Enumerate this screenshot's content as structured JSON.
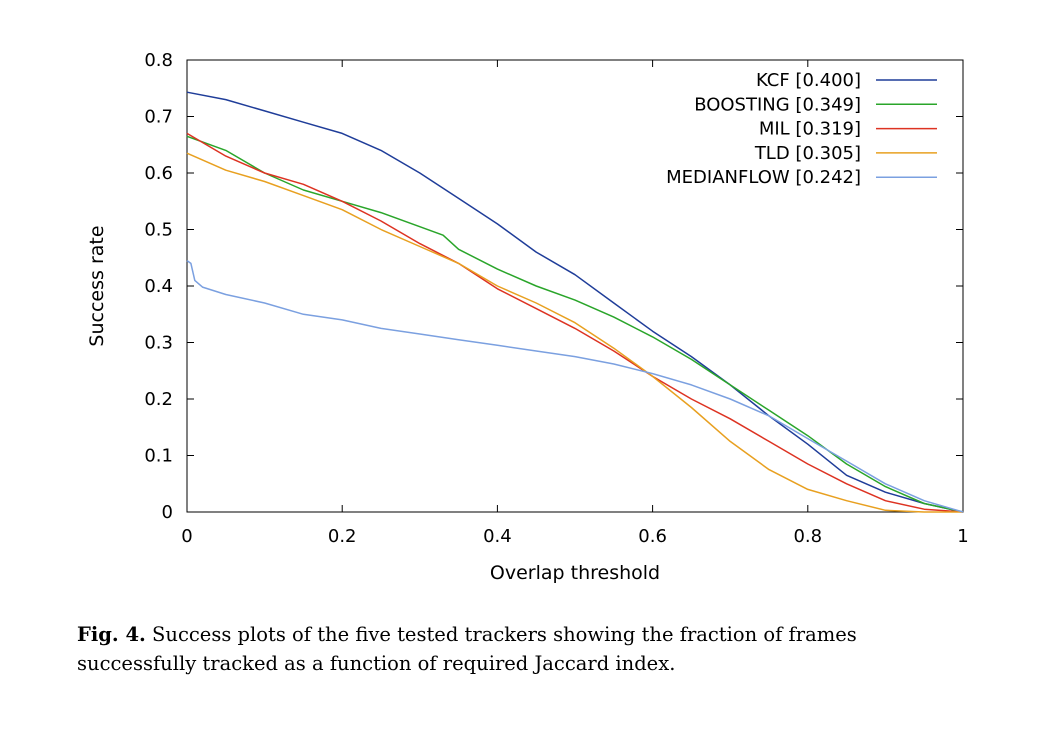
{
  "chart_data": {
    "type": "line",
    "xlabel": "Overlap threshold",
    "ylabel": "Success rate",
    "xlim": [
      0,
      1
    ],
    "ylim": [
      0,
      0.8
    ],
    "xticks": [
      "0",
      "0.2",
      "0.4",
      "0.6",
      "0.8",
      "1"
    ],
    "yticks": [
      "0",
      "0.1",
      "0.2",
      "0.3",
      "0.4",
      "0.5",
      "0.6",
      "0.7",
      "0.8"
    ],
    "grid": false,
    "legend_position": "top-right",
    "series": [
      {
        "name": "KCF [0.400]",
        "color": "#1f3d99",
        "points": [
          [
            0,
            0.743
          ],
          [
            0.05,
            0.73
          ],
          [
            0.1,
            0.71
          ],
          [
            0.15,
            0.69
          ],
          [
            0.2,
            0.67
          ],
          [
            0.25,
            0.64
          ],
          [
            0.3,
            0.6
          ],
          [
            0.35,
            0.555
          ],
          [
            0.4,
            0.51
          ],
          [
            0.45,
            0.46
          ],
          [
            0.5,
            0.42
          ],
          [
            0.55,
            0.37
          ],
          [
            0.6,
            0.32
          ],
          [
            0.65,
            0.275
          ],
          [
            0.7,
            0.225
          ],
          [
            0.75,
            0.17
          ],
          [
            0.8,
            0.12
          ],
          [
            0.85,
            0.065
          ],
          [
            0.9,
            0.035
          ],
          [
            0.95,
            0.015
          ],
          [
            1.0,
            0.0
          ]
        ]
      },
      {
        "name": "BOOSTING [0.349]",
        "color": "#2aa52a",
        "points": [
          [
            0,
            0.665
          ],
          [
            0.05,
            0.64
          ],
          [
            0.1,
            0.6
          ],
          [
            0.15,
            0.57
          ],
          [
            0.2,
            0.55
          ],
          [
            0.25,
            0.53
          ],
          [
            0.3,
            0.505
          ],
          [
            0.33,
            0.49
          ],
          [
            0.35,
            0.465
          ],
          [
            0.4,
            0.43
          ],
          [
            0.45,
            0.4
          ],
          [
            0.5,
            0.375
          ],
          [
            0.55,
            0.345
          ],
          [
            0.6,
            0.31
          ],
          [
            0.65,
            0.27
          ],
          [
            0.7,
            0.225
          ],
          [
            0.75,
            0.18
          ],
          [
            0.8,
            0.135
          ],
          [
            0.85,
            0.085
          ],
          [
            0.9,
            0.045
          ],
          [
            0.95,
            0.015
          ],
          [
            1.0,
            0.0
          ]
        ]
      },
      {
        "name": "MIL [0.319]",
        "color": "#dd3322",
        "points": [
          [
            0,
            0.67
          ],
          [
            0.05,
            0.63
          ],
          [
            0.1,
            0.6
          ],
          [
            0.15,
            0.58
          ],
          [
            0.2,
            0.55
          ],
          [
            0.25,
            0.515
          ],
          [
            0.3,
            0.475
          ],
          [
            0.35,
            0.44
          ],
          [
            0.4,
            0.395
          ],
          [
            0.45,
            0.36
          ],
          [
            0.5,
            0.325
          ],
          [
            0.55,
            0.285
          ],
          [
            0.6,
            0.24
          ],
          [
            0.65,
            0.2
          ],
          [
            0.7,
            0.165
          ],
          [
            0.75,
            0.125
          ],
          [
            0.8,
            0.085
          ],
          [
            0.85,
            0.05
          ],
          [
            0.9,
            0.02
          ],
          [
            0.95,
            0.005
          ],
          [
            1.0,
            0.0
          ]
        ]
      },
      {
        "name": "TLD [0.305]",
        "color": "#e8a020",
        "points": [
          [
            0,
            0.635
          ],
          [
            0.05,
            0.605
          ],
          [
            0.1,
            0.585
          ],
          [
            0.15,
            0.56
          ],
          [
            0.2,
            0.535
          ],
          [
            0.25,
            0.5
          ],
          [
            0.3,
            0.47
          ],
          [
            0.35,
            0.44
          ],
          [
            0.4,
            0.4
          ],
          [
            0.45,
            0.37
          ],
          [
            0.5,
            0.335
          ],
          [
            0.55,
            0.29
          ],
          [
            0.6,
            0.24
          ],
          [
            0.65,
            0.185
          ],
          [
            0.7,
            0.125
          ],
          [
            0.75,
            0.075
          ],
          [
            0.8,
            0.04
          ],
          [
            0.85,
            0.02
          ],
          [
            0.9,
            0.003
          ],
          [
            0.95,
            0.0
          ],
          [
            1.0,
            0.0
          ]
        ]
      },
      {
        "name": "MEDIANFLOW [0.242]",
        "color": "#7ba0e0",
        "points": [
          [
            0,
            0.445
          ],
          [
            0.005,
            0.44
          ],
          [
            0.01,
            0.41
          ],
          [
            0.02,
            0.398
          ],
          [
            0.05,
            0.385
          ],
          [
            0.1,
            0.37
          ],
          [
            0.15,
            0.35
          ],
          [
            0.2,
            0.34
          ],
          [
            0.25,
            0.325
          ],
          [
            0.3,
            0.315
          ],
          [
            0.35,
            0.305
          ],
          [
            0.4,
            0.295
          ],
          [
            0.45,
            0.285
          ],
          [
            0.5,
            0.275
          ],
          [
            0.55,
            0.262
          ],
          [
            0.6,
            0.245
          ],
          [
            0.65,
            0.225
          ],
          [
            0.7,
            0.2
          ],
          [
            0.75,
            0.17
          ],
          [
            0.8,
            0.13
          ],
          [
            0.85,
            0.09
          ],
          [
            0.9,
            0.05
          ],
          [
            0.95,
            0.02
          ],
          [
            1.0,
            0.0
          ]
        ]
      }
    ]
  },
  "caption": {
    "label": "Fig. 4.",
    "text": " Success plots of the five tested trackers showing the fraction of frames successfully tracked as a function of required Jaccard index."
  }
}
